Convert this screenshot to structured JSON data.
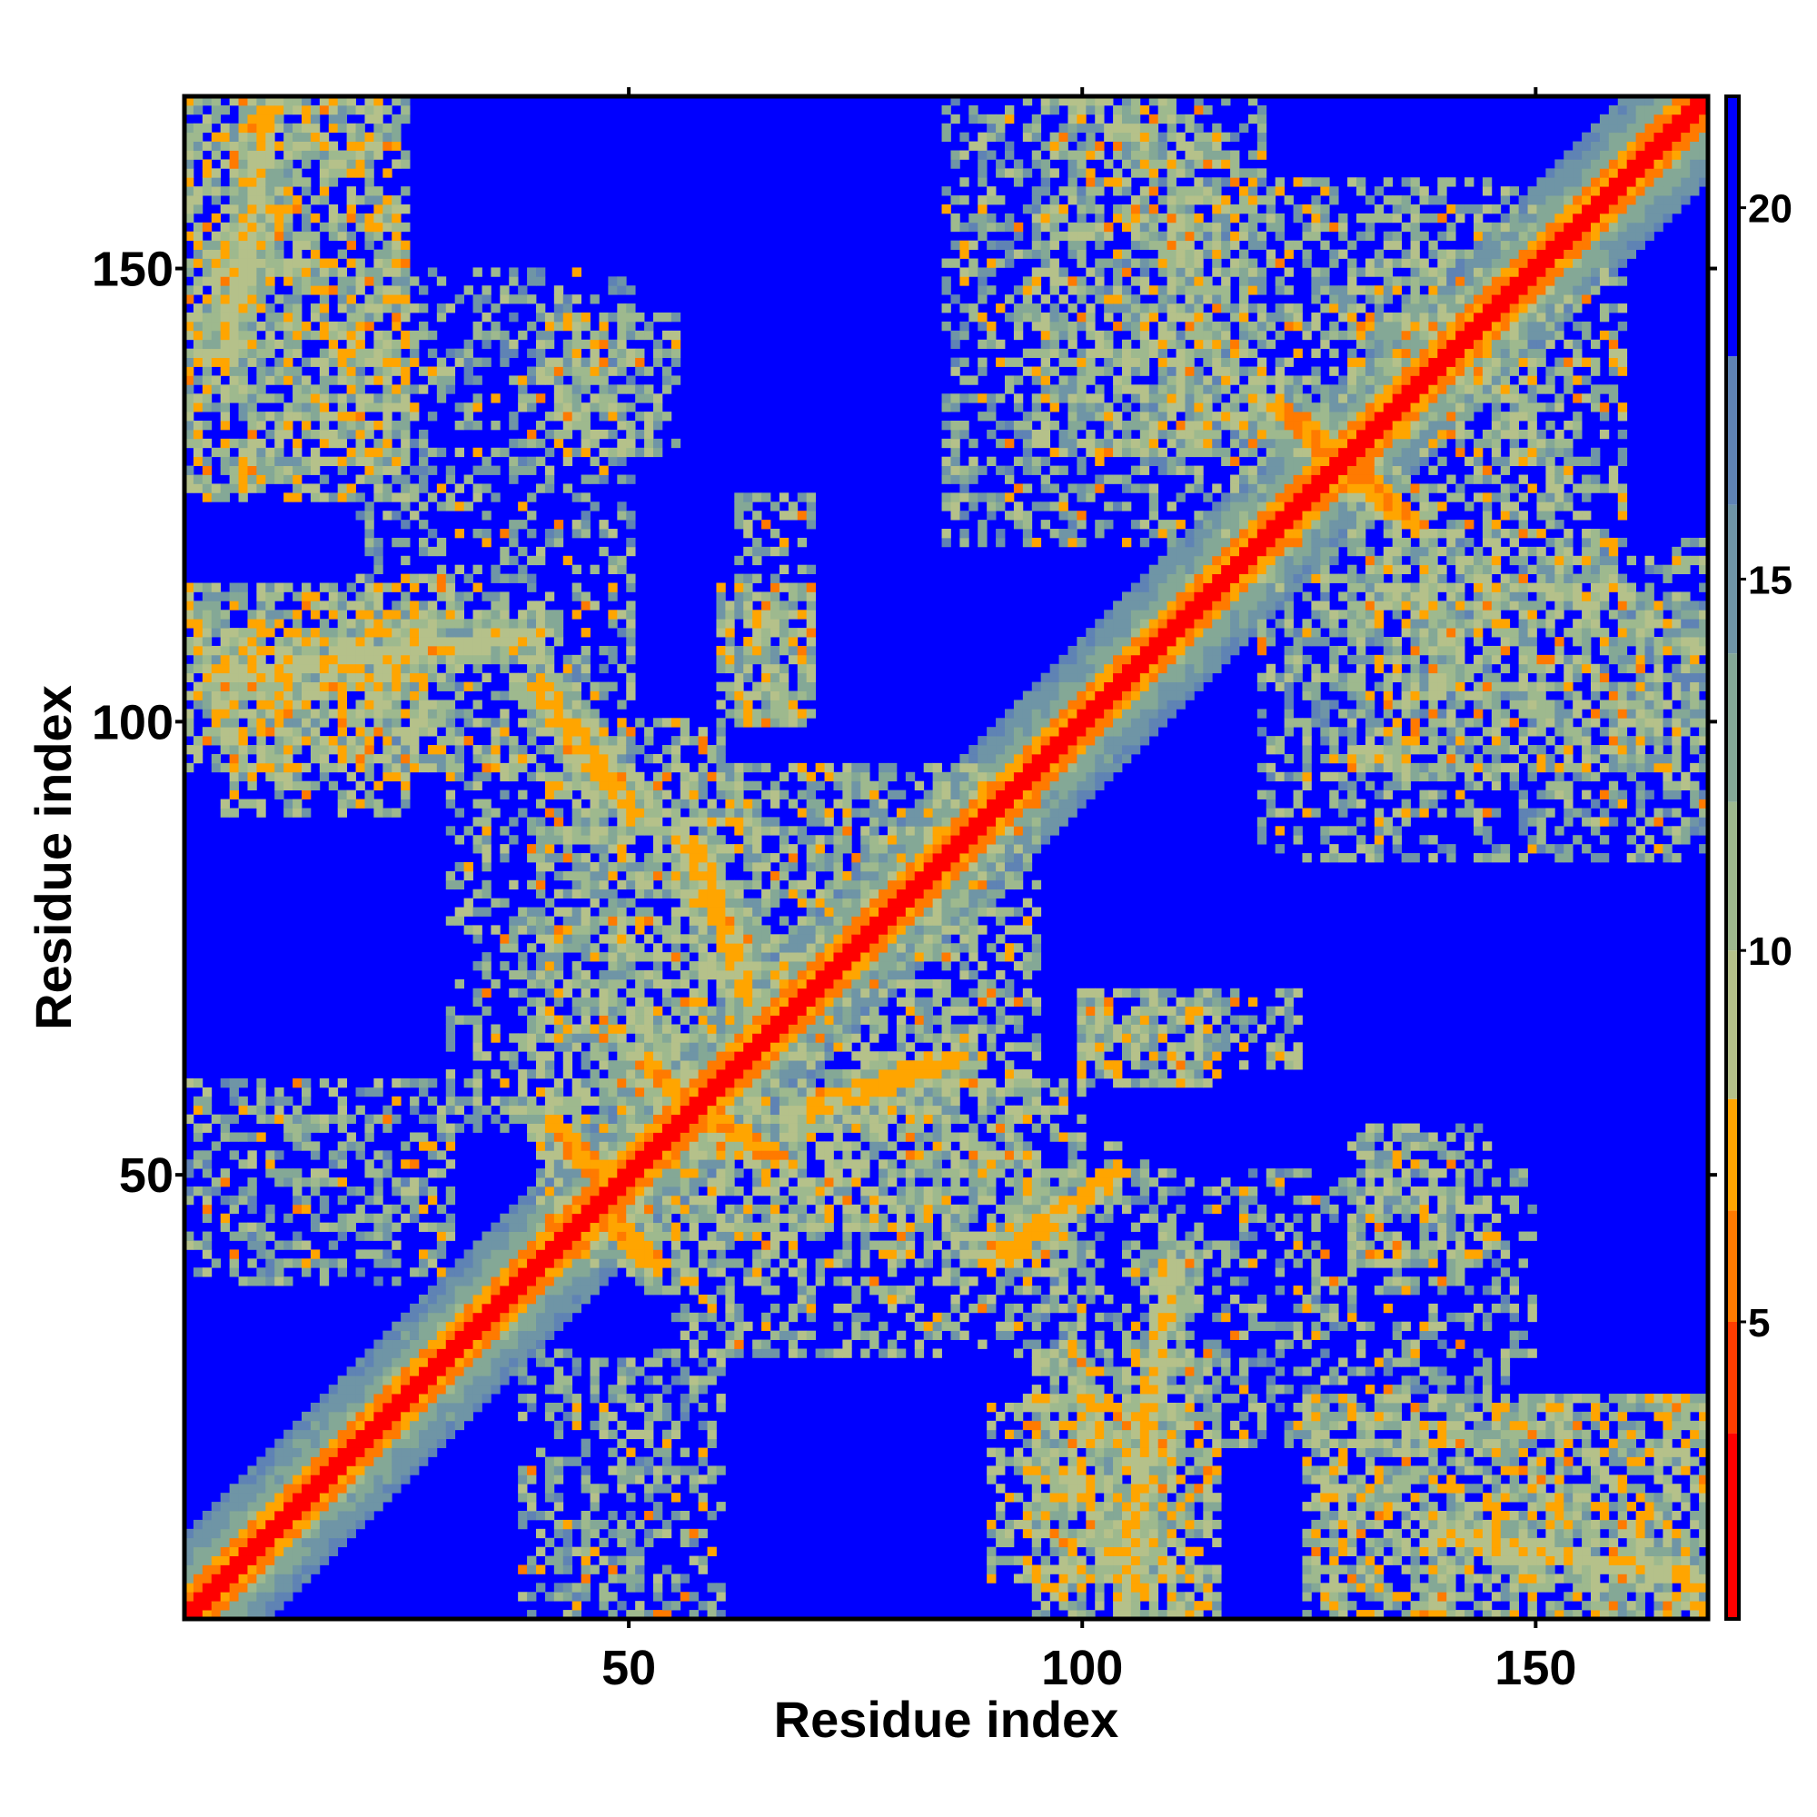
{
  "chart_data": {
    "type": "heatmap",
    "title": "",
    "xlabel": "Residue index",
    "ylabel": "Residue index",
    "n_residues": 169,
    "xlim": [
      1,
      169
    ],
    "ylim": [
      1,
      169
    ],
    "x_ticks": [
      50,
      100,
      150
    ],
    "y_ticks": [
      50,
      100,
      150
    ],
    "x_tick_labels": [
      "50",
      "100",
      "150"
    ],
    "y_tick_labels": [
      "50",
      "100",
      "150"
    ],
    "grid": false,
    "colorbar": {
      "range": [
        1,
        21.5
      ],
      "ticks": [
        5,
        10,
        15,
        20
      ],
      "tick_labels": [
        "5",
        "10",
        "15",
        "20"
      ],
      "placement": "right"
    },
    "colorscale": [
      {
        "max": 3.5,
        "color": "#ff0000"
      },
      {
        "max": 5.0,
        "color": "#ff3d00"
      },
      {
        "max": 6.5,
        "color": "#ff7a00"
      },
      {
        "max": 8.0,
        "color": "#ffa500"
      },
      {
        "max": 10.0,
        "color": "#b5c18a"
      },
      {
        "max": 12.0,
        "color": "#9eb98e"
      },
      {
        "max": 14.0,
        "color": "#84a896"
      },
      {
        "max": 16.0,
        "color": "#6f95a6"
      },
      {
        "max": 18.0,
        "color": "#5f83b4"
      },
      {
        "max": 21.5,
        "color": "#0000ff"
      }
    ],
    "diagonal_band": {
      "core_width": 1.5,
      "orange_width": 3.5,
      "green_width": 9
    },
    "contact_blocks": [
      {
        "x": [
          1,
          25
        ],
        "y": [
          125,
          169
        ],
        "level": 11,
        "density": 0.72
      },
      {
        "x": [
          125,
          169
        ],
        "y": [
          1,
          25
        ],
        "level": 11,
        "density": 0.72
      },
      {
        "x": [
          1,
          30
        ],
        "y": [
          95,
          115
        ],
        "level": 11,
        "density": 0.68
      },
      {
        "x": [
          95,
          115
        ],
        "y": [
          1,
          30
        ],
        "level": 11,
        "density": 0.68
      },
      {
        "x": [
          130,
          169
        ],
        "y": [
          95,
          115
        ],
        "level": 12,
        "density": 0.5
      },
      {
        "x": [
          95,
          115
        ],
        "y": [
          130,
          169
        ],
        "level": 12,
        "density": 0.5
      },
      {
        "x": [
          1,
          30
        ],
        "y": [
          38,
          60
        ],
        "level": 13,
        "density": 0.45
      },
      {
        "x": [
          38,
          60
        ],
        "y": [
          1,
          30
        ],
        "level": 13,
        "density": 0.45
      },
      {
        "x": [
          100,
          115
        ],
        "y": [
          60,
          70
        ],
        "level": 11,
        "density": 0.6
      },
      {
        "x": [
          60,
          70
        ],
        "y": [
          100,
          115
        ],
        "level": 11,
        "density": 0.6
      },
      {
        "x": [
          130,
          145
        ],
        "y": [
          40,
          55
        ],
        "level": 12,
        "density": 0.55
      },
      {
        "x": [
          40,
          55
        ],
        "y": [
          130,
          145
        ],
        "level": 12,
        "density": 0.55
      },
      {
        "x": [
          90,
          110
        ],
        "y": [
          5,
          25
        ],
        "level": 11,
        "density": 0.55
      },
      {
        "x": [
          5,
          25
        ],
        "y": [
          90,
          110
        ],
        "level": 11,
        "density": 0.55
      },
      {
        "x": [
          110,
          150
        ],
        "y": [
          130,
          160
        ],
        "level": 12,
        "density": 0.5
      },
      {
        "x": [
          130,
          160
        ],
        "y": [
          110,
          150
        ],
        "level": 12,
        "density": 0.5
      },
      {
        "x": [
          40,
          95
        ],
        "y": [
          40,
          95
        ],
        "level": 12,
        "density": 0.55
      },
      {
        "x": [
          30,
          60
        ],
        "y": [
          55,
          100
        ],
        "level": 12,
        "density": 0.4
      },
      {
        "x": [
          55,
          100
        ],
        "y": [
          30,
          60
        ],
        "level": 12,
        "density": 0.4
      },
      {
        "x": [
          85,
          120
        ],
        "y": [
          120,
          169
        ],
        "level": 13,
        "density": 0.45
      },
      {
        "x": [
          120,
          169
        ],
        "y": [
          85,
          120
        ],
        "level": 13,
        "density": 0.45
      },
      {
        "x": [
          95,
          150
        ],
        "y": [
          20,
          50
        ],
        "level": 13,
        "density": 0.35
      },
      {
        "x": [
          20,
          50
        ],
        "y": [
          95,
          150
        ],
        "level": 13,
        "density": 0.35
      },
      {
        "x": [
          62,
          70
        ],
        "y": [
          100,
          125
        ],
        "level": 12,
        "density": 0.45
      },
      {
        "x": [
          100,
          125
        ],
        "y": [
          62,
          70
        ],
        "level": 12,
        "density": 0.45
      }
    ],
    "contact_streaks": [
      {
        "from": [
          40,
          104
        ],
        "to": [
          50,
          90
        ],
        "width": 1.2,
        "level": 6.5
      },
      {
        "from": [
          90,
          40
        ],
        "to": [
          104,
          50
        ],
        "width": 1.2,
        "level": 6.5
      },
      {
        "from": [
          52,
          62
        ],
        "to": [
          58,
          56
        ],
        "width": 1.2,
        "level": 6
      },
      {
        "from": [
          56,
          58
        ],
        "to": [
          66,
          52
        ],
        "width": 1.2,
        "level": 6
      },
      {
        "from": [
          42,
          55
        ],
        "to": [
          48,
          48
        ],
        "width": 1.2,
        "level": 6
      },
      {
        "from": [
          46,
          46
        ],
        "to": [
          53,
          40
        ],
        "width": 1.2,
        "level": 6
      },
      {
        "from": [
          57,
          86
        ],
        "to": [
          63,
          70
        ],
        "width": 1.2,
        "level": 6.5
      },
      {
        "from": [
          70,
          57
        ],
        "to": [
          86,
          63
        ],
        "width": 1.2,
        "level": 6.5
      },
      {
        "from": [
          122,
          135
        ],
        "to": [
          130,
          128
        ],
        "width": 1.3,
        "level": 6
      },
      {
        "from": [
          128,
          130
        ],
        "to": [
          137,
          122
        ],
        "width": 1.3,
        "level": 6
      },
      {
        "from": [
          5,
          105
        ],
        "to": [
          40,
          110
        ],
        "width": 1.0,
        "level": 7.5
      },
      {
        "from": [
          105,
          5
        ],
        "to": [
          110,
          40
        ],
        "width": 1.0,
        "level": 7.5
      },
      {
        "from": [
          140,
          10
        ],
        "to": [
          168,
          5
        ],
        "width": 1.0,
        "level": 7.5
      },
      {
        "from": [
          5,
          140
        ],
        "to": [
          10,
          168
        ],
        "width": 1.0,
        "level": 7.5
      }
    ]
  }
}
